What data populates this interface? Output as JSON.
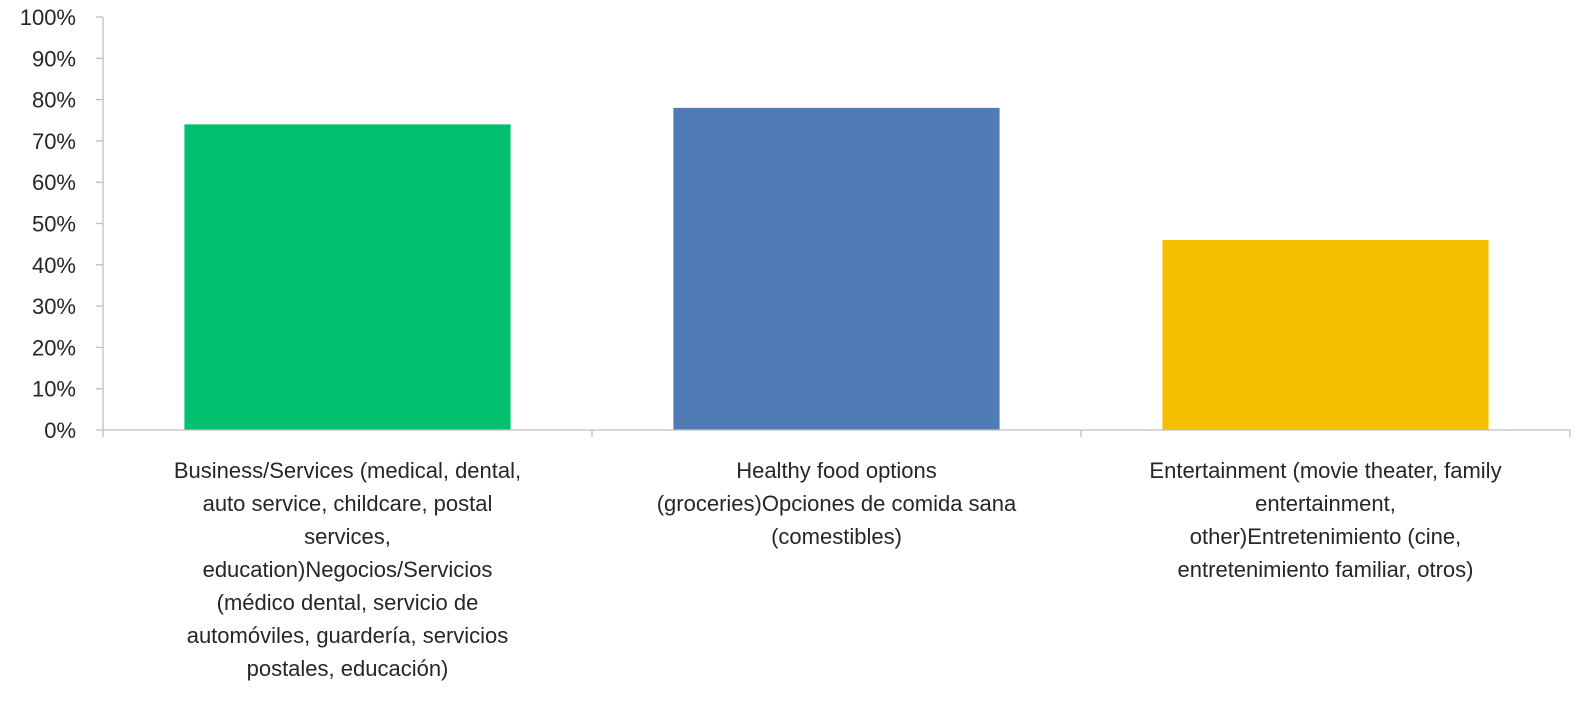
{
  "chart_data": {
    "type": "bar",
    "title": "",
    "xlabel": "",
    "ylabel": "",
    "ylim": [
      0,
      100
    ],
    "y_ticks": [
      "0%",
      "10%",
      "20%",
      "30%",
      "40%",
      "50%",
      "60%",
      "70%",
      "80%",
      "90%",
      "100%"
    ],
    "grid": false,
    "legend": "none",
    "categories": [
      "Business/Services (medical, dental, auto service, childcare, postal services, education)Negocios/Servicios (médico dental, servicio de automóviles, guardería, servicios postales, educación)",
      "Healthy food options (groceries)Opciones de comida sana (comestibles)",
      "Entertainment (movie theater, family entertainment, other)Entretenimiento (cine, entretenimiento familiar, otros)"
    ],
    "category_label_lines": [
      [
        "Business/Services (medical, dental,",
        "auto service, childcare, postal",
        "services,",
        "education)Negocios/Servicios",
        "(médico dental, servicio de",
        "automóviles, guardería, servicios",
        "postales, educación)"
      ],
      [
        "Healthy food options",
        "(groceries)Opciones de comida sana",
        "(comestibles)"
      ],
      [
        "Entertainment (movie theater, family",
        "entertainment,",
        "other)Entretenimiento (cine,",
        "entretenimiento familiar, otros)"
      ]
    ],
    "values": [
      74,
      78,
      46
    ],
    "colors": [
      "#00BF6F",
      "#507CB6",
      "#F6BF00"
    ],
    "axis_color": "#BFBFBF"
  }
}
